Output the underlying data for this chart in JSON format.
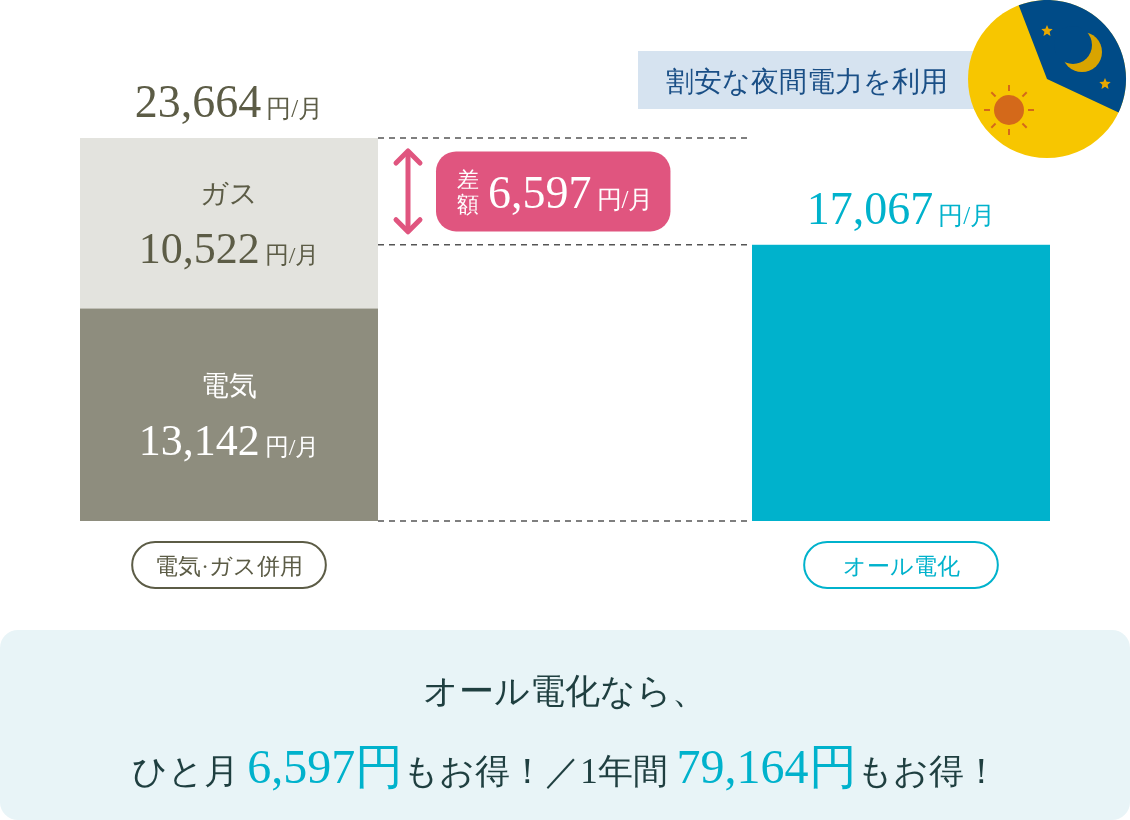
{
  "chart_data": {
    "type": "bar",
    "stacked": true,
    "title": "割安な夜間電力を利用",
    "categories": [
      "電気·ガス併用",
      "オール電化"
    ],
    "series": [
      {
        "name": "電気",
        "color": "#8e8d7e",
        "values": [
          13142,
          null
        ],
        "value_labels": [
          "13,142円/月",
          null
        ]
      },
      {
        "name": "ガス",
        "color": "#e3e3de",
        "values": [
          10522,
          null
        ],
        "value_labels": [
          "10,522円/月",
          null
        ]
      },
      {
        "color": "#00b2cc",
        "values": [
          null,
          17067
        ]
      }
    ],
    "totals": [
      "23,664円/月",
      "17,067円/月"
    ],
    "ref_lines": [
      {
        "axis": "y",
        "value": 23664,
        "line_style": "dashed",
        "color": "#555555"
      },
      {
        "axis": "y",
        "value": 17067,
        "line_style": "dashed",
        "color": "#555555"
      },
      {
        "axis": "y",
        "value": 0,
        "line_style": "dashed",
        "color": "#555555"
      }
    ],
    "annotations": [
      "差額 6,597円/月",
      "オール電化なら、",
      "ひと月 6,597円もお得！／1年間 79,164円もお得！"
    ],
    "legend": false
  }
}
